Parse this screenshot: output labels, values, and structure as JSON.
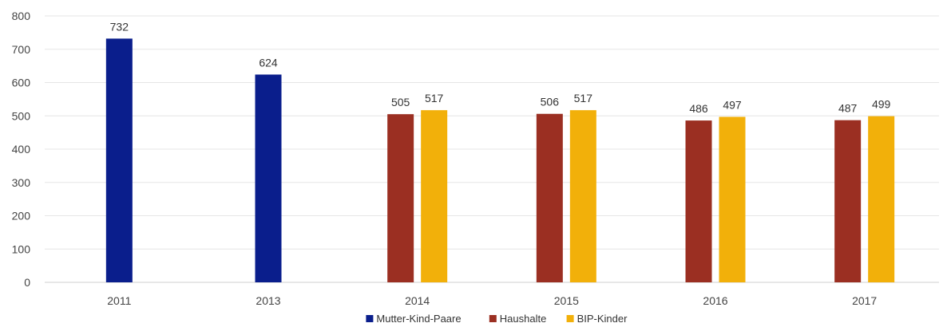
{
  "chart_data": {
    "type": "bar",
    "title": "",
    "xlabel": "",
    "ylabel": "",
    "ylim": [
      0,
      800
    ],
    "yticks": [
      0,
      100,
      200,
      300,
      400,
      500,
      600,
      700,
      800
    ],
    "grid": true,
    "legend_position": "bottom",
    "categories": [
      "2011",
      "2013",
      "2014",
      "2015",
      "2016",
      "2017"
    ],
    "series": [
      {
        "name": "Mutter-Kind-Paare",
        "color": "#0a1e8c",
        "values": [
          732,
          624,
          null,
          null,
          null,
          null
        ]
      },
      {
        "name": "Haushalte",
        "color": "#9b2f22",
        "values": [
          null,
          null,
          505,
          506,
          486,
          487
        ]
      },
      {
        "name": "BIP-Kinder",
        "color": "#f2b00a",
        "values": [
          null,
          null,
          517,
          517,
          497,
          499
        ]
      }
    ]
  }
}
